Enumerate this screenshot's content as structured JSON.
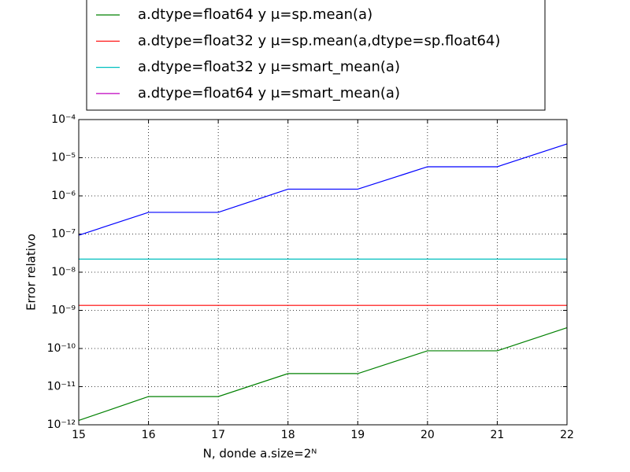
{
  "chart_data": {
    "type": "line",
    "xlabel": "N, donde a.size=2ᴺ",
    "ylabel": "Error relativo",
    "x": [
      15,
      16,
      17,
      18,
      19,
      20,
      21,
      22
    ],
    "series": [
      {
        "color": "#0000ff",
        "values": [
          9.3e-08,
          3.7e-07,
          3.7e-07,
          1.5e-06,
          1.5e-06,
          5.8e-06,
          5.8e-06,
          2.3e-05
        ]
      },
      {
        "name": "a.dtype=float64 y μ=sp.mean(a)",
        "color": "#008000",
        "values": [
          1.3e-12,
          5.5e-12,
          5.5e-12,
          2.2e-11,
          2.2e-11,
          8.7e-11,
          8.7e-11,
          3.5e-10
        ]
      },
      {
        "name": "a.dtype=float32 y μ=sp.mean(a,dtype=sp.float64)",
        "color": "#ff0000",
        "values": [
          1.35e-09,
          1.35e-09,
          1.35e-09,
          1.35e-09,
          1.35e-09,
          1.35e-09,
          1.35e-09,
          1.35e-09
        ]
      },
      {
        "name": "a.dtype=float32 y μ=smart_mean(a)",
        "color": "#00bfbf",
        "values": [
          2.2e-08,
          2.2e-08,
          2.2e-08,
          2.2e-08,
          2.2e-08,
          2.2e-08,
          2.2e-08,
          2.2e-08
        ]
      },
      {
        "name": "a.dtype=float64 y μ=smart_mean(a)",
        "color": "#bf00bf",
        "values": [
          null,
          null,
          null,
          null,
          null,
          null,
          null,
          null
        ]
      }
    ],
    "xlim": [
      15,
      22
    ],
    "xticks": [
      15,
      16,
      17,
      18,
      19,
      20,
      21,
      22
    ],
    "ylim": [
      1e-12,
      0.0001
    ],
    "log_y": true,
    "yticks": [
      {
        "value": 1e-12,
        "label": "10⁻¹²"
      },
      {
        "value": 1e-11,
        "label": "10⁻¹¹"
      },
      {
        "value": 1e-10,
        "label": "10⁻¹⁰"
      },
      {
        "value": 1e-09,
        "label": "10⁻⁹"
      },
      {
        "value": 1e-08,
        "label": "10⁻⁸"
      },
      {
        "value": 1e-07,
        "label": "10⁻⁷"
      },
      {
        "value": 1e-06,
        "label": "10⁻⁶"
      },
      {
        "value": 1e-05,
        "label": "10⁻⁵"
      },
      {
        "value": 0.0001,
        "label": "10⁻⁴"
      }
    ],
    "grid": true,
    "legend": "top"
  }
}
